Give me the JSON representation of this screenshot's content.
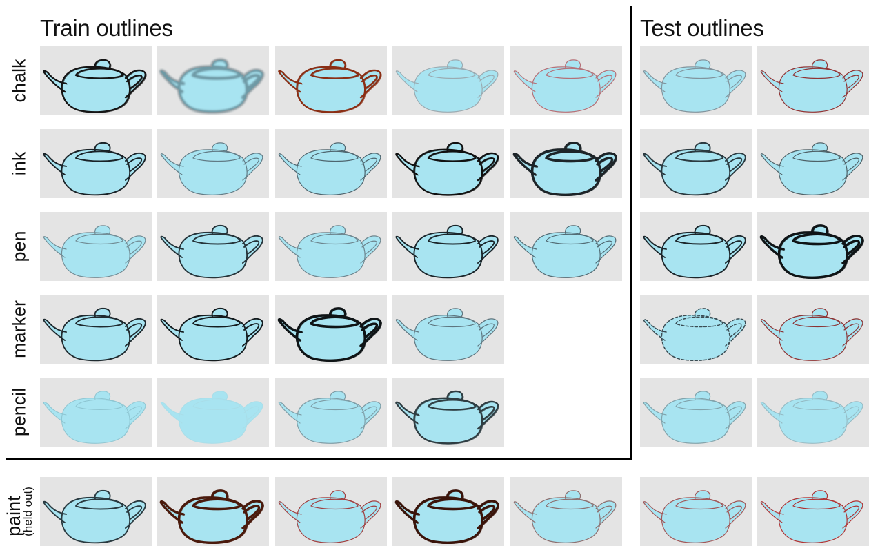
{
  "headings": {
    "train": "Train outlines",
    "test": "Test outlines"
  },
  "rows": [
    {
      "id": "chalk",
      "label": "chalk",
      "sublabel": "",
      "train": [
        {
          "color": "#151515",
          "style": "sketch"
        },
        {
          "color": "#3f5b66",
          "style": "blur"
        },
        {
          "color": "#8a2e14",
          "style": "sketch"
        },
        {
          "color": "#9aa9af",
          "style": "thin"
        },
        {
          "color": "#b56b72",
          "style": "thin"
        }
      ],
      "test": [
        {
          "color": "#7f9099",
          "style": "thin"
        },
        {
          "color": "#8f2a2a",
          "style": "thin"
        }
      ]
    },
    {
      "id": "ink",
      "label": "ink",
      "sublabel": "",
      "train": [
        {
          "color": "#1a2328",
          "style": "solid"
        },
        {
          "color": "#5e7680",
          "style": "thin"
        },
        {
          "color": "#4a5f68",
          "style": "thin"
        },
        {
          "color": "#111111",
          "style": "sketch"
        },
        {
          "color": "#1d2428",
          "style": "heavy"
        }
      ],
      "test": [
        {
          "color": "#2b3a40",
          "style": "solid"
        },
        {
          "color": "#4a5a60",
          "style": "thin"
        }
      ]
    },
    {
      "id": "pen",
      "label": "pen",
      "sublabel": "",
      "train": [
        {
          "color": "#6f8891",
          "style": "thin"
        },
        {
          "color": "#26343a",
          "style": "solid"
        },
        {
          "color": "#6a8089",
          "style": "thin"
        },
        {
          "color": "#1b252a",
          "style": "solid"
        },
        {
          "color": "#4e656e",
          "style": "thin"
        }
      ],
      "test": [
        {
          "color": "#1c262b",
          "style": "solid"
        },
        {
          "color": "#0f1416",
          "style": "heavy"
        }
      ]
    },
    {
      "id": "marker",
      "label": "marker",
      "sublabel": "",
      "train": [
        {
          "color": "#1f2a2f",
          "style": "solid"
        },
        {
          "color": "#141b1e",
          "style": "solid"
        },
        {
          "color": "#0f1416",
          "style": "heavy"
        },
        {
          "color": "#5a7079",
          "style": "thin"
        }
      ],
      "test": [
        {
          "color": "#3a4c53",
          "style": "dashed"
        },
        {
          "color": "#8a2a2a",
          "style": "thin"
        }
      ]
    },
    {
      "id": "pencil",
      "label": "pencil",
      "sublabel": "",
      "train": [
        {
          "color": "#8cc3cf",
          "style": "faint"
        },
        {
          "color": "#a8dde8",
          "style": "faint"
        },
        {
          "color": "#7c9aa3",
          "style": "thin"
        },
        {
          "color": "#2f3d42",
          "style": "sketch"
        }
      ],
      "test": [
        {
          "color": "#7fa0a8",
          "style": "thin"
        },
        {
          "color": "#92b6bf",
          "style": "faint"
        }
      ]
    },
    {
      "id": "paint",
      "label": "paint",
      "sublabel": "(held out)",
      "train": [
        {
          "color": "#2a3a40",
          "style": "solid"
        },
        {
          "color": "#4a1a0c",
          "style": "heavy"
        },
        {
          "color": "#a03838",
          "style": "thin"
        },
        {
          "color": "#3a140a",
          "style": "heavy"
        },
        {
          "color": "#8a6a6a",
          "style": "thin"
        }
      ],
      "test": [
        {
          "color": "#a05050",
          "style": "thin"
        },
        {
          "color": "#b02a2a",
          "style": "thin"
        }
      ]
    }
  ],
  "colors": {
    "teapot_fill": "#a8e4f1",
    "tile_background": "#e4e4e4",
    "divider": "#000000"
  }
}
